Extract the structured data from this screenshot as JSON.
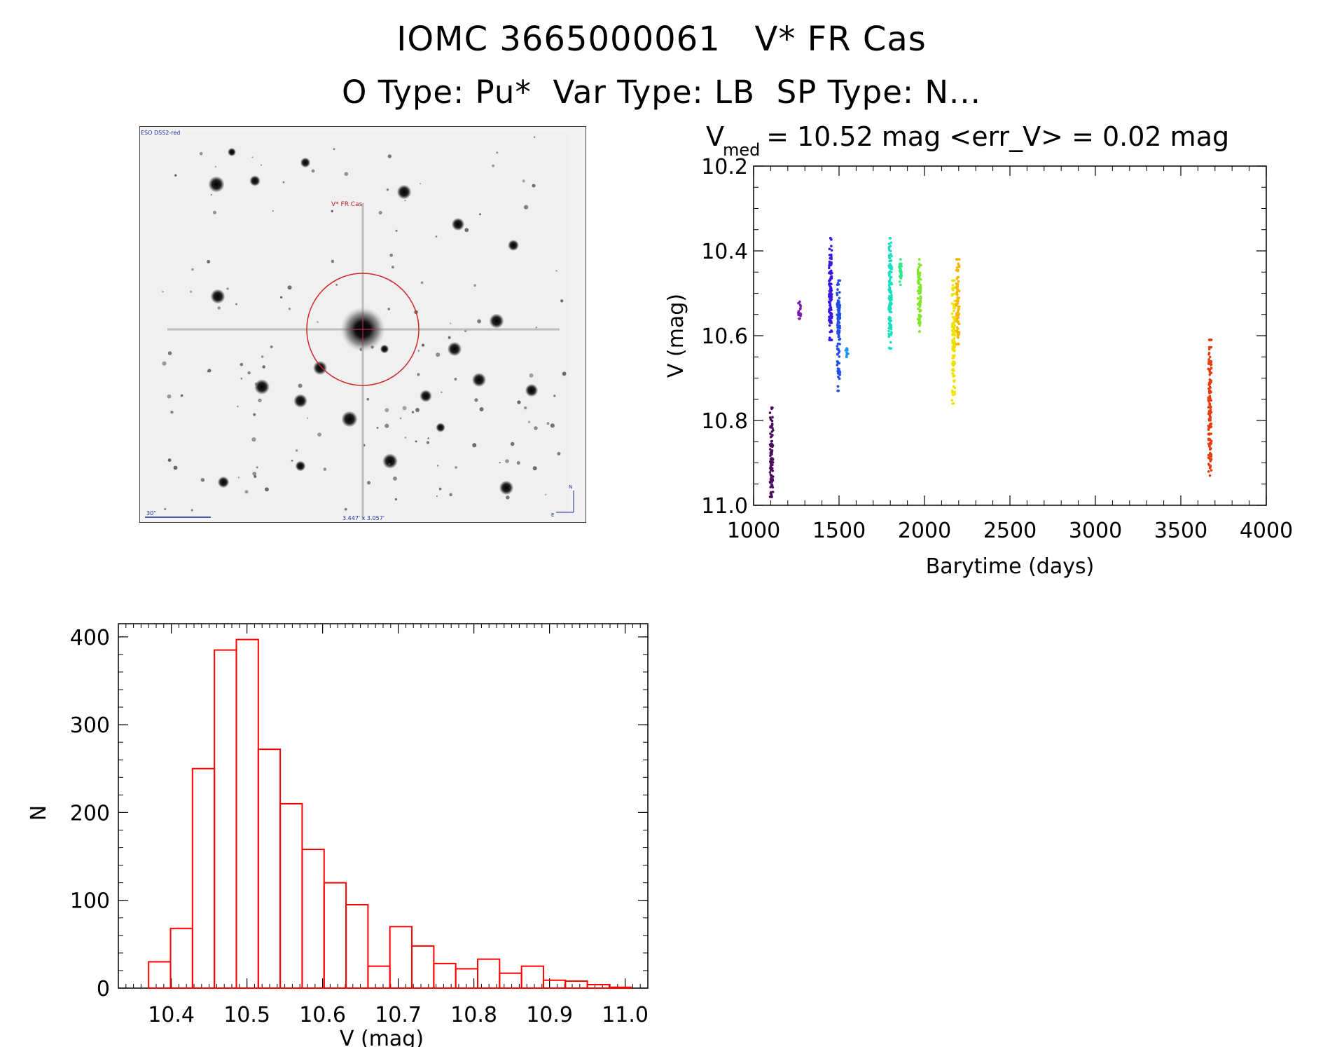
{
  "header": {
    "title_line1": "IOMC 3665000061   V* FR Cas",
    "title_line2": "O Type: Pu*  Var Type: LB  SP Type: N..."
  },
  "finder_image": {
    "survey_label": "ESO DSS2-red",
    "target_label": "V* FR Cas",
    "scale_label": "30\"",
    "size_label": "3.447' x 3.057'",
    "north_label": "N",
    "east_label": "E"
  },
  "chart_data": [
    {
      "type": "scatter",
      "title_main": "V",
      "title_sub": "med",
      "title_rest": " = 10.52 mag <err_V> = 0.02 mag",
      "xlabel": "Barytime (days)",
      "ylabel": "V (mag)",
      "xlim": [
        1000,
        4000
      ],
      "ylim": [
        11.0,
        10.2
      ],
      "xticks": [
        "1000",
        "1500",
        "2000",
        "2500",
        "3000",
        "3500",
        "4000"
      ],
      "yticks": [
        "10.2",
        "10.4",
        "10.6",
        "10.8",
        "11.0"
      ],
      "series": [
        {
          "color": "#4a0d5c",
          "x": 1105,
          "ymin": 10.77,
          "ymax": 10.98
        },
        {
          "color": "#7a1bb0",
          "x": 1270,
          "ymin": 10.52,
          "ymax": 10.56
        },
        {
          "color": "#3a17e0",
          "x": 1450,
          "ymin": 10.37,
          "ymax": 10.61
        },
        {
          "color": "#1f4de6",
          "x": 1497,
          "ymin": 10.47,
          "ymax": 10.73
        },
        {
          "color": "#1e90ee",
          "x": 1545,
          "ymin": 10.63,
          "ymax": 10.65
        },
        {
          "color": "#17e0c0",
          "x": 1800,
          "ymin": 10.37,
          "ymax": 10.63
        },
        {
          "color": "#2ee88a",
          "x": 1860,
          "ymin": 10.42,
          "ymax": 10.48
        },
        {
          "color": "#7fe82a",
          "x": 1970,
          "ymin": 10.42,
          "ymax": 10.59
        },
        {
          "color": "#ede300",
          "x": 2170,
          "ymin": 10.47,
          "ymax": 10.76
        },
        {
          "color": "#f5b800",
          "x": 2195,
          "ymin": 10.42,
          "ymax": 10.62
        },
        {
          "color": "#e83d10",
          "x": 3670,
          "ymin": 10.61,
          "ymax": 10.93
        }
      ]
    },
    {
      "type": "bar",
      "xlabel": "V (mag)",
      "ylabel": "N",
      "xlim": [
        10.33,
        11.03
      ],
      "ylim": [
        0,
        415
      ],
      "xticks": [
        "10.4",
        "10.5",
        "10.6",
        "10.7",
        "10.8",
        "10.9",
        "11.0"
      ],
      "yticks": [
        "0",
        "100",
        "200",
        "300",
        "400"
      ],
      "bin_width": 0.029,
      "bin_start": 10.37,
      "values": [
        30,
        68,
        250,
        385,
        397,
        272,
        210,
        158,
        120,
        95,
        25,
        70,
        48,
        28,
        22,
        33,
        17,
        25,
        9,
        8,
        4,
        1
      ],
      "bar_color": "#ff0000"
    }
  ]
}
